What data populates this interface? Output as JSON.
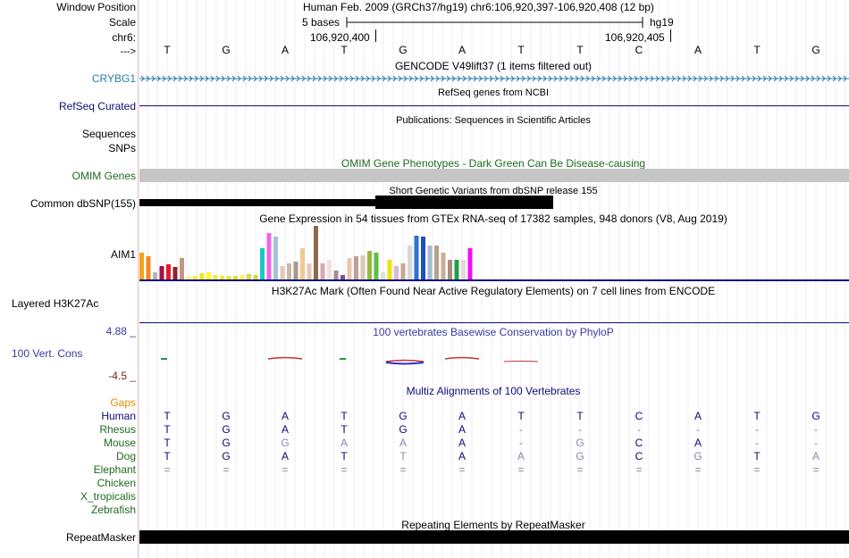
{
  "header": {
    "window_position_label": "Window Position",
    "scale_label": "Scale",
    "chrom_label": "chr6:",
    "arrow_label": "--->",
    "assembly_text": "Human Feb. 2009 (GRCh37/hg19)   chr6:106,920,397-106,920,408 (12 bp)",
    "scale_text": "5 bases",
    "scale_db": "hg19",
    "coord_left": "106,920,400",
    "coord_right": "106,920,405"
  },
  "bases": [
    "T",
    "G",
    "A",
    "T",
    "G",
    "A",
    "T",
    "T",
    "C",
    "A",
    "T",
    "G"
  ],
  "tracks": {
    "gencode": {
      "title": "GENCODE V49lift37 (1 items filtered out)",
      "label": "CRYBG1",
      "color": "#2a7ea8"
    },
    "refseq": {
      "title": "RefSeq genes from NCBI",
      "label": "RefSeq Curated",
      "color": "#0c0c78"
    },
    "publications": {
      "title": "Publications: Sequences in Scientific Articles",
      "label1": "Sequences",
      "label2": "SNPs"
    },
    "omim": {
      "title": "OMIM Gene Phenotypes - Dark Green Can Be Disease-causing",
      "label": "OMIM Genes",
      "color": "#1f6b1f"
    },
    "dbsnp": {
      "title": "Short Genetic Variants from dbSNP release 155",
      "label": "Common dbSNP(155)"
    },
    "gtex": {
      "title": "Gene Expression in 54 tissues from GTEx RNA-seq of 17382 samples, 948 donors (V8, Aug 2019)",
      "label": "AIM1"
    },
    "h3k27ac": {
      "title": "H3K27Ac Mark (Often Found Near Active Regulatory Elements) on 7 cell lines from ENCODE",
      "label": "Layered H3K27Ac"
    },
    "phylop": {
      "title": "100 vertebrates Basewise Conservation by PhyloP",
      "label": "100 Vert. Cons",
      "max": "4.88 _",
      "min": "-4.5 _",
      "color": "#3a3aa0"
    },
    "multiz": {
      "title": "Multiz Alignments of 100 Vertebrates",
      "gaps_label": "Gaps",
      "species": [
        {
          "name": "Human",
          "row": [
            "T",
            "G",
            "A",
            "T",
            "G",
            "A",
            "T",
            "T",
            "C",
            "A",
            "T",
            "G"
          ]
        },
        {
          "name": "Rhesus",
          "row": [
            "T",
            "G",
            "A",
            "T",
            "G",
            "A",
            "-",
            "-",
            "-",
            "-",
            "-",
            "-"
          ]
        },
        {
          "name": "Mouse",
          "row": [
            "T",
            "G",
            "G",
            "A",
            "A",
            "A",
            "-",
            "G",
            "C",
            "A",
            "-",
            "-"
          ]
        },
        {
          "name": "Dog",
          "row": [
            "T",
            "G",
            "A",
            "T",
            "T",
            "A",
            "A",
            "G",
            "C",
            "G",
            "T",
            "A"
          ]
        },
        {
          "name": "Elephant",
          "row": [
            "=",
            "=",
            "=",
            "=",
            "=",
            "=",
            "=",
            "=",
            "=",
            "=",
            "=",
            "="
          ]
        },
        {
          "name": "Chicken",
          "row": []
        },
        {
          "name": "X_tropicalis",
          "row": []
        },
        {
          "name": "Zebrafish",
          "row": []
        }
      ]
    },
    "repeatmasker": {
      "title": "Repeating Elements by RepeatMasker",
      "label": "RepeatMasker"
    }
  },
  "colors": {
    "divider": "#e8b8b8",
    "gap_orange": "#e08a00",
    "species_green": "#1f6b1f",
    "human_blue": "#0c0c78",
    "phylop_min": "#7a2020"
  }
}
